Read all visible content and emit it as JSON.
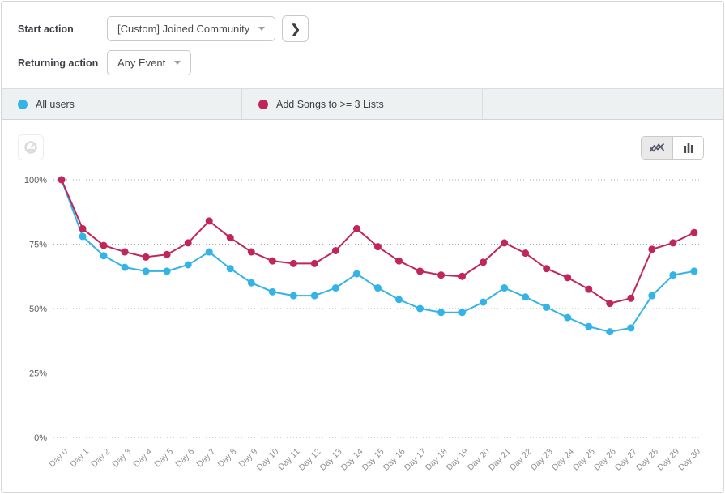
{
  "header": {
    "start_action_label": "Start action",
    "start_action_value": "[Custom] Joined Community",
    "returning_action_label": "Returning action",
    "returning_action_value": "Any Event",
    "next_button_glyph": "❯"
  },
  "legend": {
    "items": [
      {
        "label": "All users",
        "color": "#33b3e6"
      },
      {
        "label": "Add Songs to >= 3 Lists",
        "color": "#c02659"
      }
    ]
  },
  "toolbar": {
    "chart_type_selected": "line",
    "icons": [
      "gauge-icon",
      "line-chart-icon",
      "bar-chart-icon"
    ]
  },
  "colors": {
    "blue_series": "#33b3e6",
    "crimson_series": "#c02659",
    "legend_bg": "#eef1f2",
    "grid": "#a6a6a6",
    "ylabel": "#5c5d63",
    "xlabel": "#8f8f94"
  },
  "chart_data": {
    "type": "line",
    "title": "",
    "xlabel": "",
    "ylabel": "",
    "ylim": [
      0,
      100
    ],
    "grid": "dotted horizontal",
    "legend_position": "top bar",
    "ytick_values": [
      0,
      25,
      50,
      75,
      100
    ],
    "ytick_labels": [
      "0%",
      "25%",
      "50%",
      "75%",
      "100%"
    ],
    "categories": [
      "Day 0",
      "Day 1",
      "Day 2",
      "Day 3",
      "Day 4",
      "Day 5",
      "Day 6",
      "Day 7",
      "Day 8",
      "Day 9",
      "Day 10",
      "Day 11",
      "Day 12",
      "Day 13",
      "Day 14",
      "Day 15",
      "Day 16",
      "Day 17",
      "Day 18",
      "Day 19",
      "Day 20",
      "Day 21",
      "Day 22",
      "Day 23",
      "Day 24",
      "Day 25",
      "Day 26",
      "Day 27",
      "Day 28",
      "Day 29",
      "Day 30"
    ],
    "series": [
      {
        "name": "All users",
        "color": "#33b3e6",
        "values": [
          100,
          78,
          70.5,
          66,
          64.5,
          64.5,
          67,
          72,
          65.5,
          60,
          56.5,
          55,
          55,
          58,
          63.5,
          58,
          53.5,
          50,
          48.5,
          48.5,
          52.5,
          58,
          54.5,
          50.5,
          46.5,
          43,
          41,
          42.5,
          55,
          63,
          64.5
        ]
      },
      {
        "name": "Add Songs to >= 3 Lists",
        "color": "#c02659",
        "values": [
          100,
          81,
          74.5,
          72,
          70,
          71,
          75.5,
          84,
          77.5,
          72,
          68.5,
          67.5,
          67.5,
          72.5,
          81,
          74,
          68.5,
          64.5,
          63,
          62.5,
          68,
          75.5,
          71.5,
          65.5,
          62,
          57.5,
          52,
          54,
          73,
          75.5,
          79.5
        ]
      }
    ]
  }
}
